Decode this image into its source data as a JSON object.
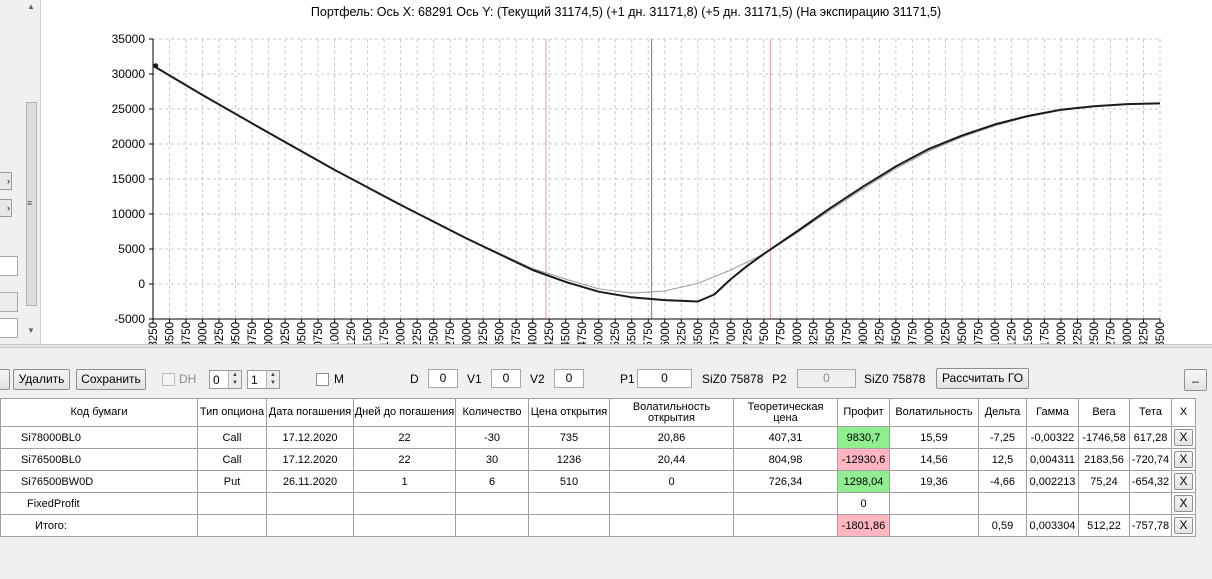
{
  "chart": {
    "title": "Портфель: Ось X: 68291 Ось Y:  (Текущий 31174,5)  (+1 дн. 31171,8)  (+5 дн. 31171,5)  (На экспирацию 31171,5)"
  },
  "chart_data": {
    "type": "line",
    "title": "Портфель: Ось X: 68291 Ось Y:  (Текущий 31174,5)  (+1 дн. 31171,8)  (+5 дн. 31171,5)  (На экспирацию 31171,5)",
    "xlim": [
      68250,
      83500
    ],
    "ylim": [
      -5000,
      35000
    ],
    "x_ticks": [
      68250,
      68500,
      68750,
      69000,
      69250,
      69500,
      69750,
      70000,
      70250,
      70500,
      70750,
      71000,
      71250,
      71500,
      71750,
      72000,
      72250,
      72500,
      72750,
      73000,
      73250,
      73500,
      73750,
      74000,
      74250,
      74500,
      74750,
      75000,
      75250,
      75500,
      75750,
      76000,
      76250,
      76500,
      76750,
      77000,
      77250,
      77500,
      77750,
      78000,
      78250,
      78500,
      78750,
      79000,
      79250,
      79500,
      79750,
      80000,
      80250,
      80500,
      80750,
      81000,
      81250,
      81500,
      81750,
      82000,
      82250,
      82500,
      82750,
      83000,
      83250,
      83500
    ],
    "y_ticks": [
      -5000,
      0,
      5000,
      10000,
      15000,
      20000,
      25000,
      30000,
      35000
    ],
    "grid": true,
    "vlines": [
      {
        "x": 74200,
        "color": "#f4a6b4"
      },
      {
        "x": 75800,
        "color": "#7a8fb8"
      },
      {
        "x": 77600,
        "color": "#f4a6b4"
      }
    ],
    "series": [
      {
        "color": "#9a9a9a",
        "width": 1,
        "x": [
          68250,
          69000,
          70000,
          71000,
          72000,
          73000,
          74000,
          74500,
          75000,
          75500,
          76000,
          76500,
          77000,
          77500,
          78000,
          78500,
          79000,
          79500,
          80000,
          80500,
          81000,
          81500,
          82000,
          82500,
          83000,
          83500
        ],
        "y": [
          31100,
          27000,
          21600,
          16300,
          11300,
          6500,
          2200,
          700,
          -700,
          -1300,
          -1000,
          100,
          2000,
          4300,
          7300,
          10500,
          13600,
          16500,
          19000,
          21000,
          22600,
          23900,
          24800,
          25400,
          25700,
          25800
        ]
      },
      {
        "color": "#1a1a1a",
        "width": 2,
        "x": [
          68250,
          69000,
          70000,
          71000,
          72000,
          73000,
          74000,
          74500,
          75000,
          75500,
          76000,
          76500,
          76750,
          77000,
          77250,
          77500,
          78000,
          78500,
          79000,
          79500,
          80000,
          80500,
          81000,
          81500,
          82000,
          82500,
          83000,
          83500
        ],
        "y": [
          31200,
          27000,
          21600,
          16300,
          11300,
          6500,
          2000,
          300,
          -1100,
          -1900,
          -2300,
          -2500,
          -1500,
          700,
          2600,
          4300,
          7500,
          10800,
          13900,
          16800,
          19300,
          21200,
          22800,
          24000,
          24900,
          25400,
          25700,
          25800
        ]
      }
    ],
    "marker": {
      "x": 68291,
      "y": 31174.5
    }
  },
  "toolbar": {
    "delete_label": "Удалить",
    "save_label": "Сохранить",
    "dh_label": "DH",
    "spin1_value": "0",
    "spin2_value": "1",
    "m_label": "M",
    "d_label": "D",
    "d_value": "0",
    "v1_label": "V1",
    "v1_value": "0",
    "v2_label": "V2",
    "v2_value": "0",
    "p1_label": "P1",
    "p1_value": "0",
    "p1_instrument": "SiZ0 75878",
    "p2_label": "P2",
    "p2_value": "0",
    "p2_instrument": "SiZ0 75878",
    "calc_label": "Рассчитать ГО",
    "minimize_label": "_"
  },
  "table": {
    "headers": [
      "Код бумаги",
      "Тип опциона",
      "Дата погашения",
      "Дней до погашения",
      "Количество",
      "Цена открытия",
      "Волатильность открытия",
      "Теоретическая цена",
      "Профит",
      "Волатильность",
      "Дельта",
      "Гамма",
      "Вега",
      "Тета",
      "X"
    ],
    "rows": [
      {
        "code": "Si78000BL0",
        "type": "Call",
        "date": "17.12.2020",
        "days": "22",
        "qty": "-30",
        "open_price": "735",
        "open_vol": "20,86",
        "theo": "407,31",
        "profit": "9830,7",
        "profit_color": "green",
        "vol": "15,59",
        "delta": "-7,25",
        "gamma": "-0,00322",
        "vega": "-1746,58",
        "theta": "617,28",
        "x": "X"
      },
      {
        "code": "Si76500BL0",
        "type": "Call",
        "date": "17.12.2020",
        "days": "22",
        "qty": "30",
        "open_price": "1236",
        "open_vol": "20,44",
        "theo": "804,98",
        "profit": "-12930,6",
        "profit_color": "red",
        "vol": "14,56",
        "delta": "12,5",
        "gamma": "0,004311",
        "vega": "2183,56",
        "theta": "-720,74",
        "x": "X"
      },
      {
        "code": "Si76500BW0D",
        "type": "Put",
        "date": "26.11.2020",
        "days": "1",
        "qty": "6",
        "open_price": "510",
        "open_vol": "0",
        "theo": "726,34",
        "profit": "1298,04",
        "profit_color": "green",
        "vol": "19,36",
        "delta": "-4,66",
        "gamma": "0,002213",
        "vega": "75,24",
        "theta": "-654,32",
        "x": "X"
      },
      {
        "code": "FixedProfit",
        "type": "",
        "date": "",
        "days": "",
        "qty": "",
        "open_price": "",
        "open_vol": "",
        "theo": "",
        "profit": "0",
        "profit_color": "",
        "vol": "",
        "delta": "",
        "gamma": "",
        "vega": "",
        "theta": "",
        "x": "X"
      },
      {
        "code": "Итого:",
        "type": "",
        "date": "",
        "days": "",
        "qty": "",
        "open_price": "",
        "open_vol": "",
        "theo": "",
        "profit": "-1801,86",
        "profit_color": "red",
        "vol": "",
        "delta": "0,59",
        "gamma": "0,003304",
        "vega": "512,22",
        "theta": "-757,78",
        "x": "X"
      }
    ]
  }
}
